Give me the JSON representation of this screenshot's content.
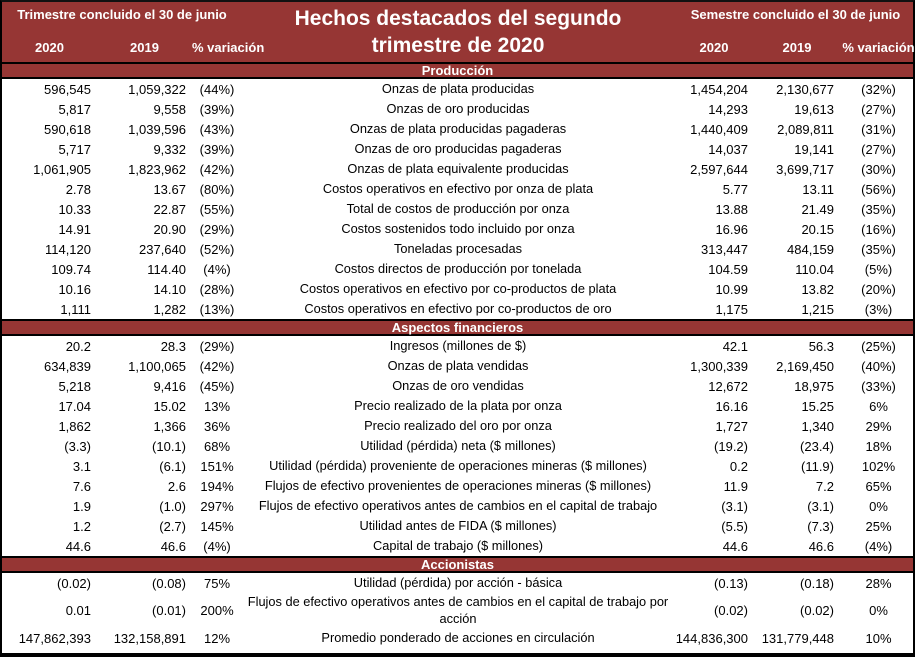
{
  "title": {
    "line1": "Hechos destacados del segundo",
    "line2": "trimestre de 2020"
  },
  "left_header": {
    "label": "Trimestre concluido el 30 de junio",
    "col_2020": "2020",
    "col_2019": "2019",
    "col_var": "% variación"
  },
  "right_header": {
    "label": "Semestre concluido el 30 de junio",
    "col_2020": "2020",
    "col_2019": "2019",
    "col_var": "% variación"
  },
  "colors": {
    "maroon": "#963634",
    "header_text": "#FFFFFF",
    "body_text": "#000000",
    "border": "#000000",
    "body_bg": "#FFFFFF"
  },
  "sections": [
    {
      "label": "Producción",
      "rows": [
        [
          "596,545",
          "1,059,322",
          "(44%)",
          "Onzas de plata producidas",
          "1,454,204",
          "2,130,677",
          "(32%)"
        ],
        [
          "5,817",
          "9,558",
          "(39%)",
          "Onzas de oro producidas",
          "14,293",
          "19,613",
          "(27%)"
        ],
        [
          "590,618",
          "1,039,596",
          "(43%)",
          "Onzas de plata producidas pagaderas",
          "1,440,409",
          "2,089,811",
          "(31%)"
        ],
        [
          "5,717",
          "9,332",
          "(39%)",
          "Onzas de oro producidas pagaderas",
          "14,037",
          "19,141",
          "(27%)"
        ],
        [
          "1,061,905",
          "1,823,962",
          "(42%)",
          "Onzas de plata equivalente producidas",
          "2,597,644",
          "3,699,717",
          "(30%)"
        ],
        [
          "2.78",
          "13.67",
          "(80%)",
          "Costos operativos en efectivo por onza de plata",
          "5.77",
          "13.11",
          "(56%)"
        ],
        [
          "10.33",
          "22.87",
          "(55%)",
          "Total de costos de producción por onza",
          "13.88",
          "21.49",
          "(35%)"
        ],
        [
          "14.91",
          "20.90",
          "(29%)",
          "Costos sostenidos todo incluido por onza",
          "16.96",
          "20.15",
          "(16%)"
        ],
        [
          "114,120",
          "237,640",
          "(52%)",
          "Toneladas procesadas",
          "313,447",
          "484,159",
          "(35%)"
        ],
        [
          "109.74",
          "114.40",
          "(4%)",
          "Costos directos de producción por tonelada",
          "104.59",
          "110.04",
          "(5%)"
        ],
        [
          "10.16",
          "14.10",
          "(28%)",
          "Costos operativos en efectivo por co-productos de plata",
          "10.99",
          "13.82",
          "(20%)"
        ],
        [
          "1,111",
          "1,282",
          "(13%)",
          "Costos operativos en efectivo por co-productos de oro",
          "1,175",
          "1,215",
          "(3%)"
        ]
      ]
    },
    {
      "label": "Aspectos financieros",
      "rows": [
        [
          "20.2",
          "28.3",
          "(29%)",
          "Ingresos (millones de $)",
          "42.1",
          "56.3",
          "(25%)"
        ],
        [
          "634,839",
          "1,100,065",
          "(42%)",
          "Onzas de plata vendidas",
          "1,300,339",
          "2,169,450",
          "(40%)"
        ],
        [
          "5,218",
          "9,416",
          "(45%)",
          "Onzas de oro vendidas",
          "12,672",
          "18,975",
          "(33%)"
        ],
        [
          "17.04",
          "15.02",
          "13%",
          "Precio realizado de la plata por onza",
          "16.16",
          "15.25",
          "6%"
        ],
        [
          "1,862",
          "1,366",
          "36%",
          "Precio realizado del oro por onza",
          "1,727",
          "1,340",
          "29%"
        ],
        [
          "(3.3)",
          "(10.1)",
          "68%",
          "Utilidad (pérdida) neta ($ millones)",
          "(19.2)",
          "(23.4)",
          "18%"
        ],
        [
          "3.1",
          "(6.1)",
          "151%",
          "Utilidad (pérdida) proveniente de operaciones mineras ($ millones)",
          "0.2",
          "(11.9)",
          "102%"
        ],
        [
          "7.6",
          "2.6",
          "194%",
          "Flujos de efectivo provenientes de operaciones mineras ($ millones)",
          "11.9",
          "7.2",
          "65%"
        ],
        [
          "1.9",
          "(1.0)",
          "297%",
          "Flujos de efectivo operativos antes de cambios en el capital de trabajo",
          "(3.1)",
          "(3.1)",
          "0%"
        ],
        [
          "1.2",
          "(2.7)",
          "145%",
          "Utilidad antes de FIDA ($ millones)",
          "(5.5)",
          "(7.3)",
          "25%"
        ],
        [
          "44.6",
          "46.6",
          "(4%)",
          "Capital de trabajo ($ millones)",
          "44.6",
          "46.6",
          "(4%)"
        ]
      ]
    },
    {
      "label": "Accionistas",
      "rows": [
        [
          "(0.02)",
          "(0.08)",
          "75%",
          "Utilidad (pérdida) por acción - básica",
          "(0.13)",
          "(0.18)",
          "28%"
        ],
        [
          "0.01",
          "(0.01)",
          "200%",
          "Flujos de efectivo operativos antes de cambios en el capital de trabajo por acción",
          "(0.02)",
          "(0.02)",
          "0%"
        ],
        [
          "147,862,393",
          "132,158,891",
          "12%",
          "Promedio ponderado de acciones en circulación",
          "144,836,300",
          "131,779,448",
          "10%"
        ]
      ]
    }
  ]
}
